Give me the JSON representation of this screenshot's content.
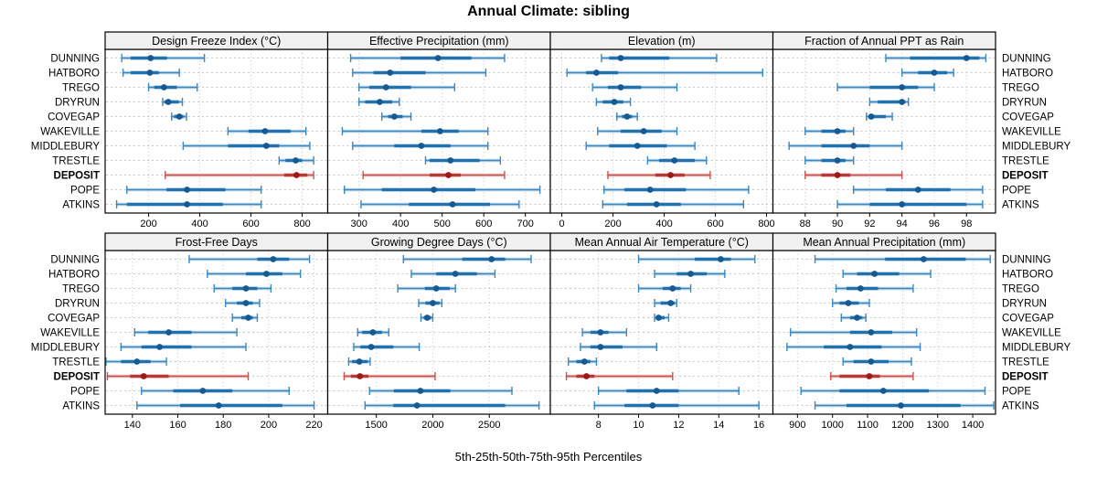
{
  "title": "Annual Climate: sibling",
  "caption": "5th-25th-50th-75th-95th Percentiles",
  "stations": [
    "DUNNING",
    "HATBORO",
    "TREGO",
    "DRYRUN",
    "COVEGAP",
    "WAKEVILLE",
    "MIDDLEBURY",
    "TRESTLE",
    "DEPOSIT",
    "POPE",
    "ATKINS"
  ],
  "highlight_station": "DEPOSIT",
  "colors": {
    "blue_band_light": "#aecde5",
    "blue_line": "#3c87bd",
    "blue_band": "#2171ad",
    "blue_dot": "#175a92",
    "red_band_light": "#e4b0ad",
    "red_line": "#c55450",
    "red_band": "#b73936",
    "red_dot": "#9c1b19",
    "grid": "#c9c9c9",
    "header_bg": "#f0f0f0",
    "border": "#000000"
  },
  "chart_data": [
    {
      "type": "dotplot-percentiles",
      "title": "Design Freeze Index (°C)",
      "xlim": [
        30,
        900
      ],
      "ticks": [
        200,
        400,
        600,
        800
      ],
      "percentile_labels": [
        "p5",
        "p25",
        "p50",
        "p75",
        "p95"
      ],
      "values": [
        [
          95,
          130,
          208,
          272,
          418
        ],
        [
          100,
          130,
          205,
          240,
          320
        ],
        [
          200,
          222,
          260,
          310,
          390
        ],
        [
          255,
          262,
          277,
          318,
          332
        ],
        [
          290,
          300,
          320,
          336,
          348
        ],
        [
          510,
          590,
          655,
          755,
          815
        ],
        [
          335,
          510,
          660,
          710,
          830
        ],
        [
          710,
          735,
          775,
          800,
          845
        ],
        [
          265,
          730,
          778,
          820,
          845
        ],
        [
          115,
          270,
          350,
          500,
          640
        ],
        [
          75,
          115,
          350,
          490,
          640
        ]
      ]
    },
    {
      "type": "dotplot-percentiles",
      "title": "Effective Precipitation (mm)",
      "xlim": [
        225,
        760
      ],
      "ticks": [
        300,
        400,
        500,
        600,
        700
      ],
      "percentile_labels": [
        "p5",
        "p25",
        "p50",
        "p75",
        "p95"
      ],
      "values": [
        [
          280,
          400,
          490,
          570,
          650
        ],
        [
          285,
          335,
          375,
          460,
          605
        ],
        [
          300,
          325,
          365,
          425,
          530
        ],
        [
          300,
          315,
          350,
          380,
          397
        ],
        [
          355,
          370,
          385,
          405,
          425
        ],
        [
          260,
          450,
          495,
          540,
          610
        ],
        [
          285,
          385,
          450,
          520,
          610
        ],
        [
          460,
          470,
          520,
          590,
          640
        ],
        [
          310,
          470,
          515,
          545,
          650
        ],
        [
          265,
          355,
          480,
          580,
          735
        ],
        [
          305,
          420,
          525,
          615,
          685
        ]
      ]
    },
    {
      "type": "dotplot-percentiles",
      "title": "Elevation (m)",
      "xlim": [
        -45,
        825
      ],
      "ticks": [
        0,
        200,
        400,
        600,
        800
      ],
      "percentile_labels": [
        "p5",
        "p25",
        "p50",
        "p75",
        "p95"
      ],
      "values": [
        [
          155,
          185,
          230,
          420,
          605
        ],
        [
          20,
          95,
          135,
          220,
          785
        ],
        [
          120,
          180,
          230,
          310,
          450
        ],
        [
          135,
          160,
          205,
          240,
          268
        ],
        [
          215,
          235,
          255,
          275,
          295
        ],
        [
          140,
          230,
          320,
          390,
          450
        ],
        [
          95,
          185,
          295,
          410,
          520
        ],
        [
          335,
          380,
          440,
          520,
          565
        ],
        [
          180,
          365,
          425,
          480,
          580
        ],
        [
          165,
          245,
          345,
          485,
          730
        ],
        [
          160,
          255,
          370,
          465,
          710
        ]
      ]
    },
    {
      "type": "dotplot-percentiles",
      "title": "Fraction of Annual PPT as Rain",
      "xlim": [
        86,
        99.8
      ],
      "ticks": [
        88,
        90,
        92,
        94,
        96,
        98
      ],
      "percentile_labels": [
        "p5",
        "p25",
        "p50",
        "p75",
        "p95"
      ],
      "values": [
        [
          93,
          94.5,
          98,
          98.8,
          99.2
        ],
        [
          94,
          95,
          96,
          96.8,
          97.2
        ],
        [
          90,
          92,
          94,
          95,
          96
        ],
        [
          92,
          92.5,
          94,
          94.2,
          94.4
        ],
        [
          91.8,
          92,
          92.1,
          93,
          93.4
        ],
        [
          88,
          89,
          90,
          90.5,
          91
        ],
        [
          87,
          89,
          91,
          92,
          94
        ],
        [
          88,
          89,
          90,
          90.5,
          91
        ],
        [
          88,
          89,
          90,
          90.8,
          94
        ],
        [
          91,
          93,
          95,
          97,
          99
        ],
        [
          90,
          92,
          94,
          98,
          99
        ]
      ]
    },
    {
      "type": "dotplot-percentiles",
      "title": "Frost-Free Days",
      "xlim": [
        128,
        226
      ],
      "ticks": [
        140,
        160,
        180,
        200,
        220
      ],
      "percentile_labels": [
        "p5",
        "p25",
        "p50",
        "p75",
        "p95"
      ],
      "values": [
        [
          165,
          195,
          202,
          209,
          218
        ],
        [
          173,
          190,
          199,
          206,
          214
        ],
        [
          176,
          184,
          190,
          195,
          201
        ],
        [
          181,
          186,
          190,
          193,
          196
        ],
        [
          184,
          188,
          191,
          193,
          195
        ],
        [
          141,
          147,
          156,
          166,
          186
        ],
        [
          135,
          144,
          152,
          166,
          190
        ],
        [
          127,
          135,
          142,
          148,
          155
        ],
        [
          129,
          139,
          145,
          156,
          191
        ],
        [
          144,
          158,
          171,
          184,
          209
        ],
        [
          142,
          161,
          178,
          206,
          220
        ]
      ]
    },
    {
      "type": "dotplot-percentiles",
      "title": "Growing Degree Days (°C)",
      "xlim": [
        1070,
        3040
      ],
      "ticks": [
        1500,
        2000,
        2500
      ],
      "percentile_labels": [
        "p5",
        "p25",
        "p50",
        "p75",
        "p95"
      ],
      "values": [
        [
          1740,
          2260,
          2520,
          2640,
          2870
        ],
        [
          1810,
          2030,
          2200,
          2390,
          2550
        ],
        [
          1690,
          1930,
          2030,
          2150,
          2200
        ],
        [
          1875,
          1935,
          2000,
          2060,
          2080
        ],
        [
          1895,
          1920,
          1950,
          1985,
          2000
        ],
        [
          1335,
          1375,
          1470,
          1550,
          1610
        ],
        [
          1300,
          1360,
          1455,
          1650,
          1880
        ],
        [
          1255,
          1285,
          1350,
          1425,
          1445
        ],
        [
          1215,
          1275,
          1355,
          1430,
          2020
        ],
        [
          1440,
          1655,
          1890,
          2155,
          2700
        ],
        [
          1400,
          1650,
          1860,
          2640,
          2940
        ]
      ]
    },
    {
      "type": "dotplot-percentiles",
      "title": "Mean Annual Air Temperature (°C)",
      "xlim": [
        5.6,
        16.7
      ],
      "ticks": [
        8,
        10,
        12,
        14,
        16
      ],
      "percentile_labels": [
        "p5",
        "p25",
        "p50",
        "p75",
        "p95"
      ],
      "values": [
        [
          10,
          12.8,
          14.1,
          14.6,
          15.8
        ],
        [
          10.8,
          11.9,
          12.6,
          13.4,
          14.3
        ],
        [
          10,
          11.2,
          11.7,
          12.1,
          12.6
        ],
        [
          10.8,
          11.1,
          11.6,
          11.8,
          11.9
        ],
        [
          10.8,
          10.9,
          11.0,
          11.3,
          11.5
        ],
        [
          7.2,
          7.6,
          8.1,
          8.5,
          9.4
        ],
        [
          7.1,
          7.6,
          8.1,
          9.2,
          10.9
        ],
        [
          6.5,
          6.9,
          7.3,
          7.6,
          7.9
        ],
        [
          6.4,
          6.9,
          7.4,
          7.8,
          11.7
        ],
        [
          8.0,
          9.4,
          10.9,
          12.0,
          15.0
        ],
        [
          7.8,
          9.3,
          10.7,
          12.0,
          16.0
        ]
      ]
    },
    {
      "type": "dotplot-percentiles",
      "title": "Mean Annual Precipitation (mm)",
      "xlim": [
        830,
        1465
      ],
      "ticks": [
        900,
        1000,
        1100,
        1200,
        1300,
        1400
      ],
      "percentile_labels": [
        "p5",
        "p25",
        "p50",
        "p75",
        "p95"
      ],
      "values": [
        [
          950,
          1150,
          1260,
          1380,
          1450
        ],
        [
          1030,
          1070,
          1120,
          1190,
          1280
        ],
        [
          1010,
          1040,
          1080,
          1130,
          1230
        ],
        [
          1000,
          1020,
          1045,
          1075,
          1105
        ],
        [
          1025,
          1050,
          1070,
          1085,
          1095
        ],
        [
          880,
          1050,
          1110,
          1170,
          1240
        ],
        [
          870,
          975,
          1050,
          1140,
          1250
        ],
        [
          1030,
          1060,
          1110,
          1160,
          1225
        ],
        [
          995,
          1020,
          1105,
          1135,
          1230
        ],
        [
          910,
          1020,
          1145,
          1275,
          1435
        ],
        [
          950,
          1040,
          1195,
          1365,
          1460
        ]
      ]
    }
  ],
  "layout_hints": {
    "rows": 2,
    "cols": 4,
    "grid": "dotted",
    "row_gridlines": "dashed"
  }
}
